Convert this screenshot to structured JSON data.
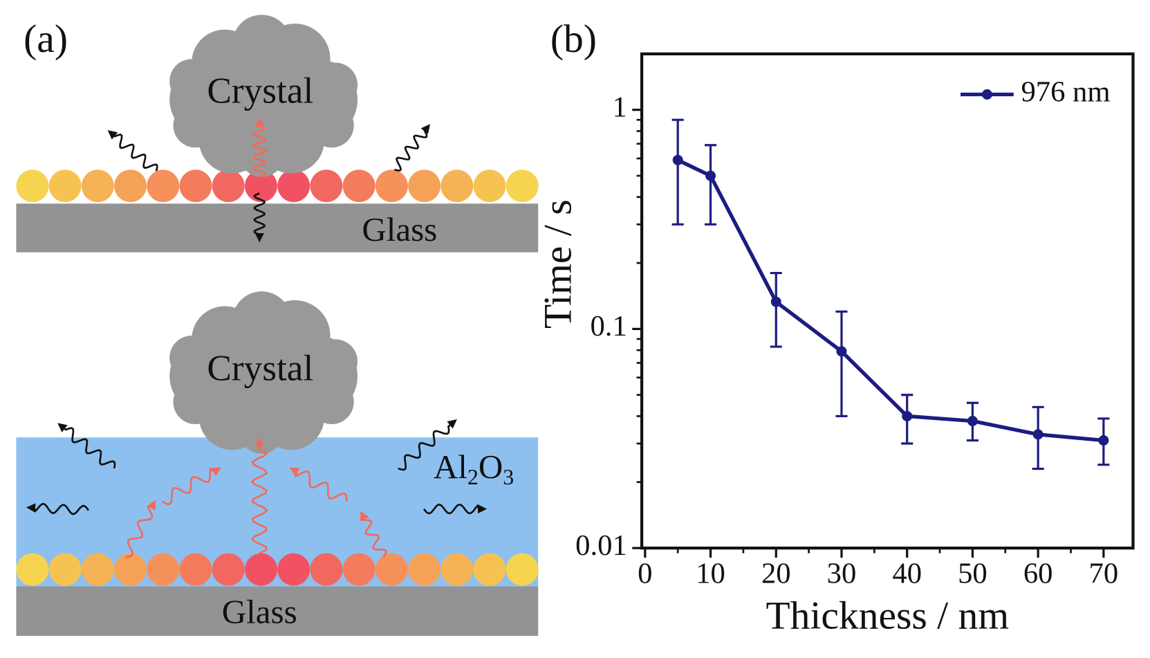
{
  "panel_a": {
    "label": "(a)",
    "top": {
      "crystal": "Crystal",
      "substrate": "Glass"
    },
    "bottom": {
      "crystal": "Crystal",
      "substrate": "Glass",
      "coating": [
        "Al",
        "2",
        "O",
        "3"
      ]
    }
  },
  "chart_data": {
    "type": "line",
    "panel_label": "(b)",
    "x_label": "Thickness / nm",
    "y_label": "Time / s",
    "x": [
      5,
      10,
      20,
      30,
      40,
      50,
      60,
      70
    ],
    "series": [
      {
        "name": "976 nm",
        "color": "#1c1c82",
        "values": [
          0.59,
          0.5,
          0.133,
          0.079,
          0.04,
          0.038,
          0.033,
          0.031
        ],
        "upper": [
          0.9,
          0.69,
          0.18,
          0.12,
          0.05,
          0.046,
          0.044,
          0.039
        ],
        "lower": [
          0.3,
          0.3,
          0.083,
          0.04,
          0.03,
          0.031,
          0.023,
          0.024
        ]
      }
    ],
    "xlim": [
      -0.5,
      74.5
    ],
    "ylim": [
      0.01,
      1.8
    ],
    "xticks": [
      0,
      10,
      20,
      30,
      40,
      50,
      60,
      70
    ],
    "xminorticks": [
      5,
      15,
      25,
      35,
      45,
      55,
      65
    ],
    "yticks": [
      0.01,
      0.1,
      1
    ],
    "yminorticks": [
      0.02,
      0.03,
      0.04,
      0.05,
      0.06,
      0.07,
      0.08,
      0.09,
      0.2,
      0.3,
      0.4,
      0.5,
      0.6,
      0.7,
      0.8,
      0.9
    ],
    "ylog": true,
    "legend": "upper right"
  }
}
